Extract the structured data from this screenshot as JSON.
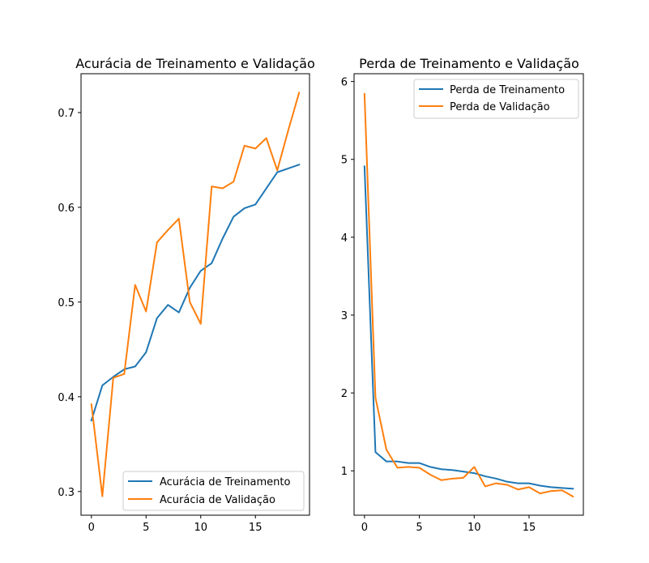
{
  "chart_data": [
    {
      "type": "line",
      "title": "Acurácia de Treinamento e Validação",
      "xlabel": "",
      "ylabel": "",
      "xlim": [
        -0.95,
        19.95
      ],
      "ylim": [
        0.275,
        0.741
      ],
      "xticks": [
        0,
        5,
        10,
        15
      ],
      "yticks": [
        0.3,
        0.4,
        0.5,
        0.6,
        0.7
      ],
      "ytick_labels": [
        "0.3",
        "0.4",
        "0.5",
        "0.6",
        "0.7"
      ],
      "grid": false,
      "legend_position": "lower right",
      "x": [
        0,
        1,
        2,
        3,
        4,
        5,
        6,
        7,
        8,
        9,
        10,
        11,
        12,
        13,
        14,
        15,
        16,
        17,
        18,
        19
      ],
      "series": [
        {
          "name": "Acurácia de Treinamento",
          "color": "#1f77b4",
          "values": [
            0.375,
            0.412,
            0.421,
            0.429,
            0.432,
            0.447,
            0.483,
            0.497,
            0.489,
            0.515,
            0.533,
            0.541,
            0.567,
            0.59,
            0.599,
            0.603,
            0.62,
            0.637,
            0.641,
            0.645
          ]
        },
        {
          "name": "Acurácia de Validação",
          "color": "#ff7f0e",
          "values": [
            0.392,
            0.295,
            0.42,
            0.424,
            0.518,
            0.49,
            0.563,
            0.576,
            0.588,
            0.5,
            0.477,
            0.622,
            0.62,
            0.627,
            0.665,
            0.662,
            0.673,
            0.639,
            0.681,
            0.721
          ]
        }
      ]
    },
    {
      "type": "line",
      "title": "Perda de Treinamento e Validação",
      "xlabel": "",
      "ylabel": "",
      "xlim": [
        -0.95,
        19.95
      ],
      "ylim": [
        0.43,
        6.1
      ],
      "xticks": [
        0,
        5,
        10,
        15
      ],
      "yticks": [
        1,
        2,
        3,
        4,
        5,
        6
      ],
      "ytick_labels": [
        "1",
        "2",
        "3",
        "4",
        "5",
        "6"
      ],
      "grid": false,
      "legend_position": "upper right",
      "x": [
        0,
        1,
        2,
        3,
        4,
        5,
        6,
        7,
        8,
        9,
        10,
        11,
        12,
        13,
        14,
        15,
        16,
        17,
        18,
        19
      ],
      "series": [
        {
          "name": "Perda de Treinamento",
          "color": "#1f77b4",
          "values": [
            4.91,
            1.24,
            1.12,
            1.12,
            1.1,
            1.1,
            1.05,
            1.02,
            1.01,
            0.99,
            0.97,
            0.93,
            0.9,
            0.86,
            0.84,
            0.84,
            0.81,
            0.79,
            0.78,
            0.77
          ]
        },
        {
          "name": "Perda de Validação",
          "color": "#ff7f0e",
          "values": [
            5.84,
            1.94,
            1.27,
            1.04,
            1.05,
            1.04,
            0.95,
            0.88,
            0.9,
            0.91,
            1.05,
            0.8,
            0.84,
            0.82,
            0.76,
            0.79,
            0.71,
            0.74,
            0.75,
            0.67
          ]
        }
      ]
    }
  ]
}
